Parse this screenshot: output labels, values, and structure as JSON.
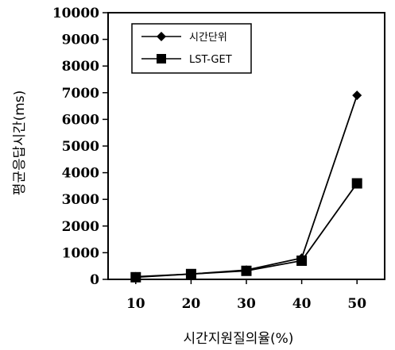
{
  "chart_data": {
    "type": "line",
    "x": [
      10,
      20,
      30,
      40,
      50
    ],
    "xlabel": "시간지원질의율(%)",
    "ylabel": "평균응답시간(ms)",
    "ylim": [
      0,
      10000
    ],
    "yticks": [
      0,
      1000,
      2000,
      3000,
      4000,
      5000,
      6000,
      7000,
      8000,
      9000,
      10000
    ],
    "grid": false,
    "legend_position": "top-left",
    "series": [
      {
        "name": "시간단위",
        "marker": "diamond",
        "values": [
          100,
          200,
          350,
          800,
          6900
        ]
      },
      {
        "name": "LST-GET",
        "marker": "square",
        "values": [
          80,
          200,
          320,
          700,
          3600
        ]
      }
    ]
  }
}
